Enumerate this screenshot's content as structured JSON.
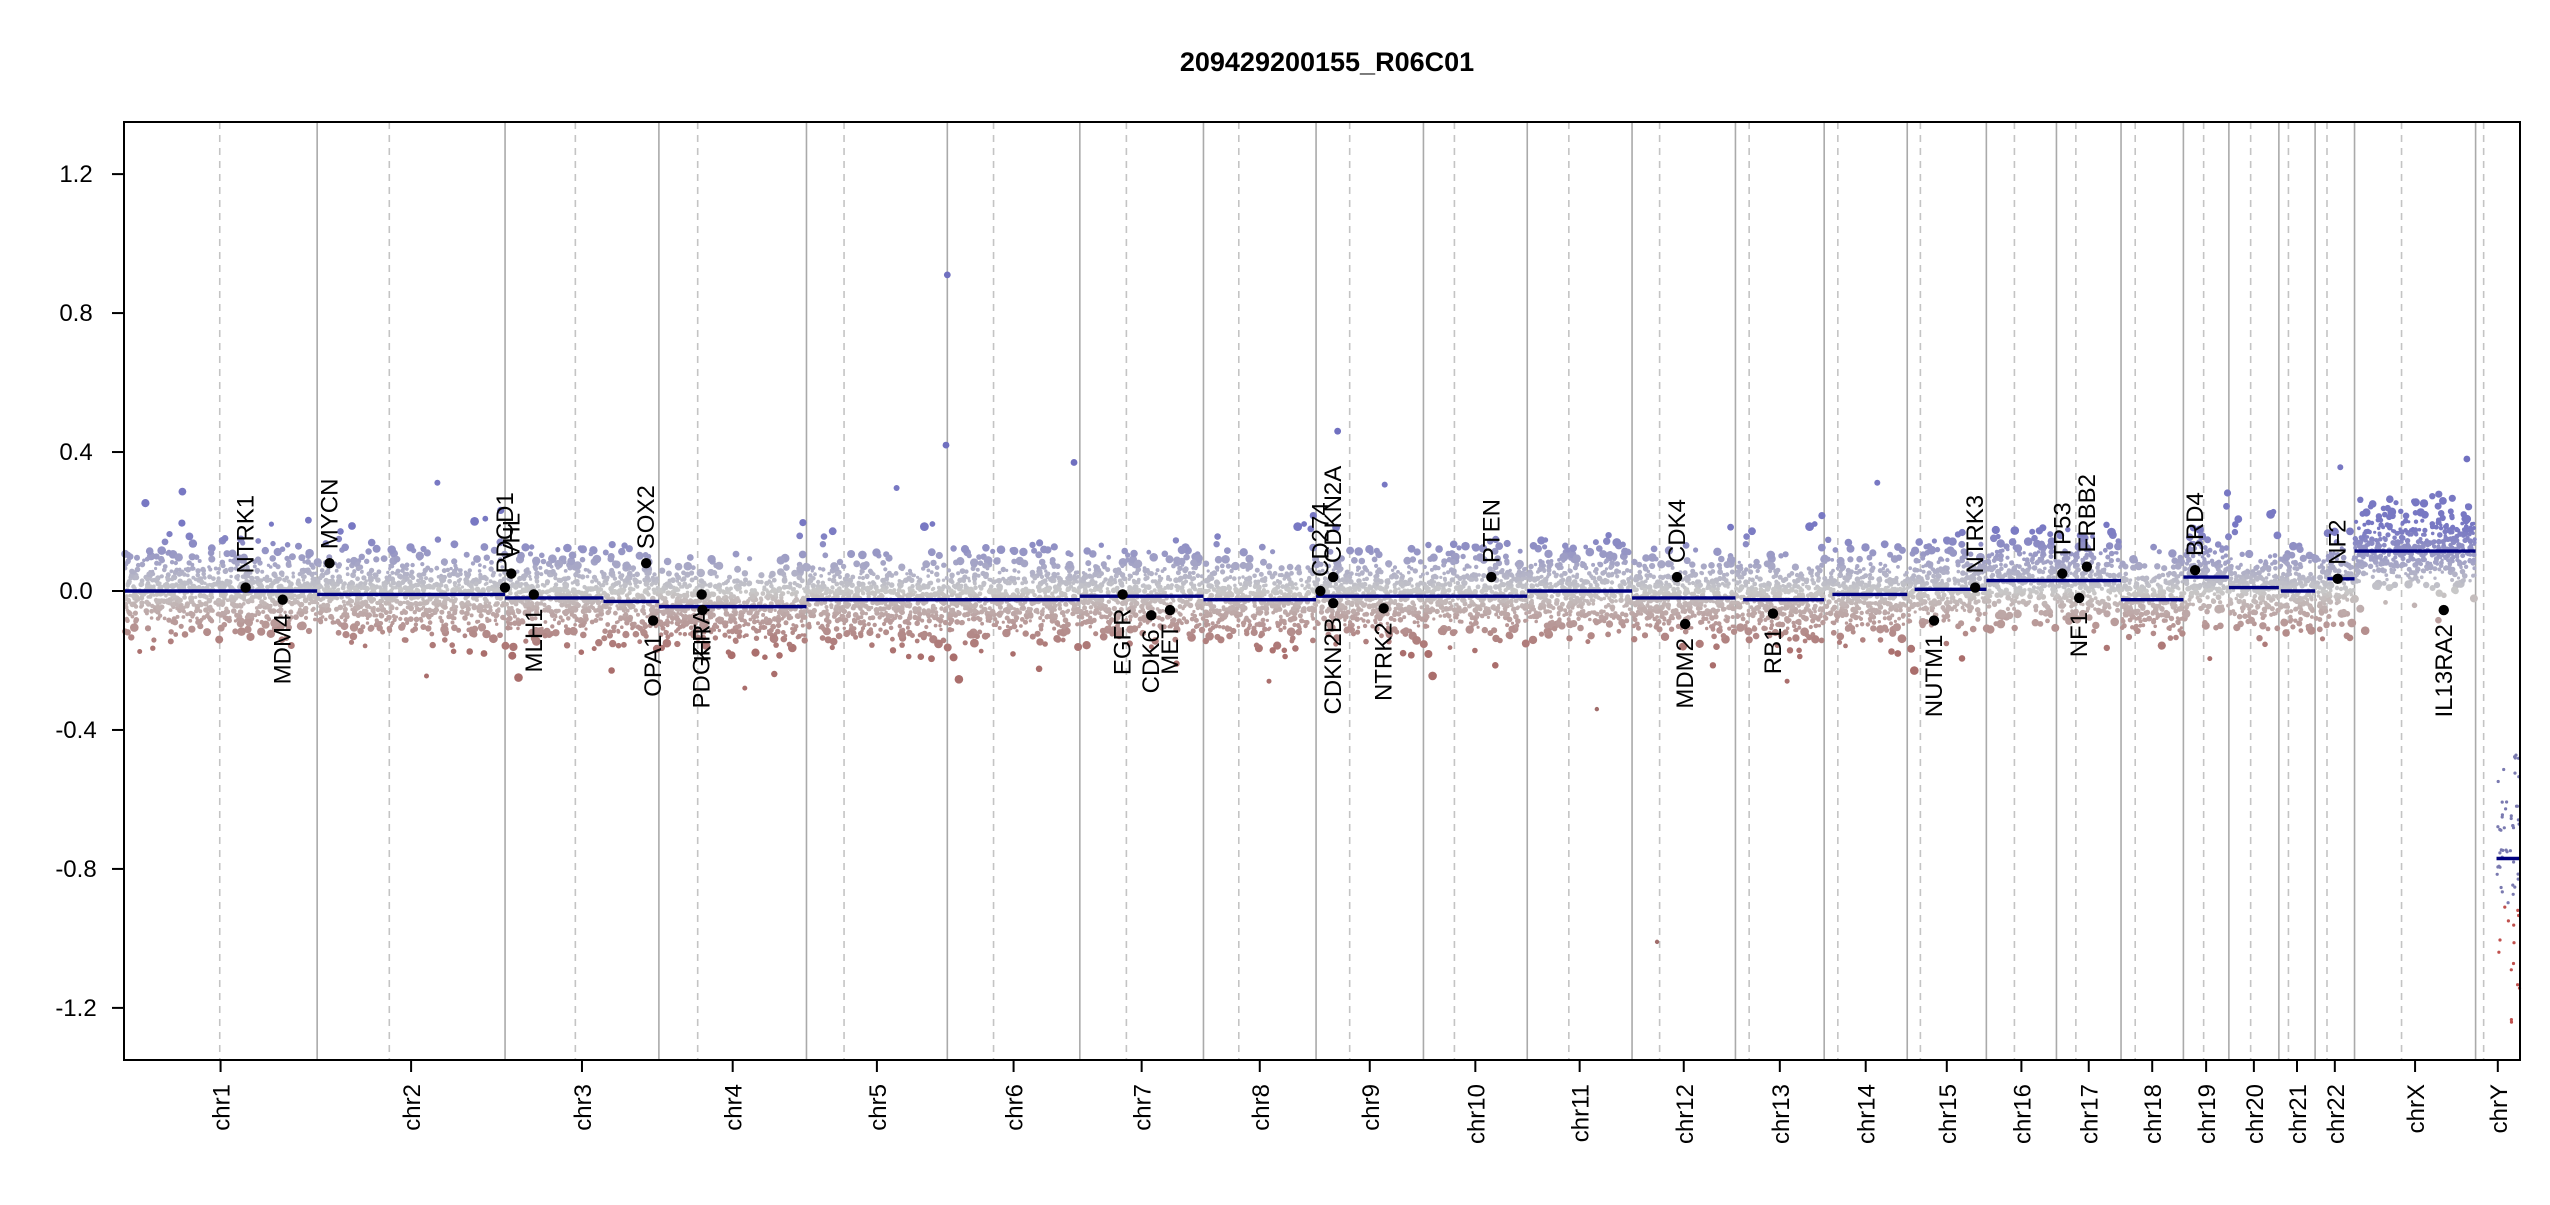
{
  "chart_data": {
    "type": "scatter",
    "title": "209429200155_R06C01",
    "ylim": [
      -1.35,
      1.35
    ],
    "y_ticks": [
      "1.2",
      "0.8",
      "0.4",
      "0.0",
      "-0.4",
      "-0.8",
      "-1.2"
    ],
    "y_tick_values": [
      1.2,
      0.8,
      0.4,
      0.0,
      -0.4,
      -0.8,
      -1.2
    ],
    "grid": false,
    "legend": "none",
    "colors": {
      "gain": "#7f7fc0",
      "loss": "#b07a78",
      "neutral": "#c8c8c8",
      "segment": "#00007f",
      "gene": "#000000",
      "chrom_line": "#aaaaaa"
    },
    "chromosomes": [
      {
        "name": "chr1",
        "start": 0.0,
        "end": 248.956
      },
      {
        "name": "chr2",
        "start": 248.956,
        "end": 491.149
      },
      {
        "name": "chr3",
        "start": 491.149,
        "end": 689.445
      },
      {
        "name": "chr4",
        "start": 689.445,
        "end": 879.66
      },
      {
        "name": "chr5",
        "start": 879.66,
        "end": 1061.198
      },
      {
        "name": "chr6",
        "start": 1061.198,
        "end": 1232.004
      },
      {
        "name": "chr7",
        "start": 1232.004,
        "end": 1391.35
      },
      {
        "name": "chr8",
        "start": 1391.35,
        "end": 1536.489
      },
      {
        "name": "chr9",
        "start": 1536.489,
        "end": 1674.884
      },
      {
        "name": "chr10",
        "start": 1674.884,
        "end": 1808.681
      },
      {
        "name": "chr11",
        "start": 1808.681,
        "end": 1943.768
      },
      {
        "name": "chr12",
        "start": 1943.768,
        "end": 2077.043
      },
      {
        "name": "chr13",
        "start": 2077.043,
        "end": 2191.407
      },
      {
        "name": "chr14",
        "start": 2191.407,
        "end": 2298.451
      },
      {
        "name": "chr15",
        "start": 2298.451,
        "end": 2400.442
      },
      {
        "name": "chr16",
        "start": 2400.442,
        "end": 2490.78
      },
      {
        "name": "chr17",
        "start": 2490.78,
        "end": 2574.038
      },
      {
        "name": "chr18",
        "start": 2574.038,
        "end": 2654.411
      },
      {
        "name": "chr19",
        "start": 2654.411,
        "end": 2713.028
      },
      {
        "name": "chr20",
        "start": 2713.028,
        "end": 2777.472
      },
      {
        "name": "chr21",
        "start": 2777.472,
        "end": 2824.182
      },
      {
        "name": "chr22",
        "start": 2824.182,
        "end": 2875.0
      },
      {
        "name": "chrX",
        "start": 2875.0,
        "end": 3031.04
      },
      {
        "name": "chrY",
        "start": 3031.04,
        "end": 3088.27
      }
    ],
    "centromeres": [
      123.4,
      341.96,
      581.75,
      739.45,
      928.1,
      1120.8,
      1292.0,
      1436.9,
      1579.8,
      1714.8,
      1862.3,
      1979.3,
      2094.7,
      2209.0,
      2315.4,
      2436.6,
      2515.8,
      2592.3,
      2680.5,
      2741.1,
      2789.8,
      2839.5,
      2935.6,
      3041.4
    ],
    "segments": [
      {
        "x0": 0.0,
        "x1": 248.956,
        "y": 0.0
      },
      {
        "x0": 248.956,
        "x1": 491.149,
        "y": -0.01
      },
      {
        "x0": 491.149,
        "x1": 618.0,
        "y": -0.02
      },
      {
        "x0": 618.0,
        "x1": 689.445,
        "y": -0.03
      },
      {
        "x0": 689.445,
        "x1": 879.66,
        "y": -0.045
      },
      {
        "x0": 879.66,
        "x1": 1061.198,
        "y": -0.025
      },
      {
        "x0": 1061.198,
        "x1": 1232.004,
        "y": -0.025
      },
      {
        "x0": 1232.004,
        "x1": 1391.35,
        "y": -0.015
      },
      {
        "x0": 1391.35,
        "x1": 1536.489,
        "y": -0.025
      },
      {
        "x0": 1536.489,
        "x1": 1674.884,
        "y": -0.015
      },
      {
        "x0": 1674.884,
        "x1": 1808.681,
        "y": -0.015
      },
      {
        "x0": 1808.681,
        "x1": 1943.768,
        "y": 0.0
      },
      {
        "x0": 1943.768,
        "x1": 2077.043,
        "y": -0.02
      },
      {
        "x0": 2087.0,
        "x1": 2191.407,
        "y": -0.025
      },
      {
        "x0": 2202.0,
        "x1": 2298.451,
        "y": -0.01
      },
      {
        "x0": 2308.0,
        "x1": 2400.442,
        "y": 0.005
      },
      {
        "x0": 2400.442,
        "x1": 2574.038,
        "y": 0.03
      },
      {
        "x0": 2574.038,
        "x1": 2654.411,
        "y": -0.025
      },
      {
        "x0": 2654.411,
        "x1": 2713.028,
        "y": 0.04
      },
      {
        "x0": 2713.028,
        "x1": 2777.472,
        "y": 0.01
      },
      {
        "x0": 2780.0,
        "x1": 2824.182,
        "y": 0.0
      },
      {
        "x0": 2840.0,
        "x1": 2875.0,
        "y": 0.035
      },
      {
        "x0": 2875.0,
        "x1": 3031.04,
        "y": 0.115
      },
      {
        "x0": 3058.0,
        "x1": 3088.27,
        "y": -0.77
      }
    ],
    "genes": [
      {
        "name": "NTRK1",
        "pos": 156.8,
        "y": 0.01,
        "side": "up"
      },
      {
        "name": "MDM4",
        "pos": 204.5,
        "y": -0.025,
        "side": "down"
      },
      {
        "name": "MYCN",
        "pos": 264.9,
        "y": 0.08,
        "side": "up"
      },
      {
        "name": "PDCD1",
        "pos": 491.0,
        "y": 0.01,
        "side": "up"
      },
      {
        "name": "VHL",
        "pos": 499.2,
        "y": 0.05,
        "side": "up"
      },
      {
        "name": "MLH1",
        "pos": 528.2,
        "y": -0.01,
        "side": "down"
      },
      {
        "name": "SOX2",
        "pos": 673.0,
        "y": 0.08,
        "side": "up"
      },
      {
        "name": "OPA1",
        "pos": 682.0,
        "y": -0.085,
        "side": "down"
      },
      {
        "name": "PDGFRA",
        "pos": 744.6,
        "y": -0.01,
        "side": "down"
      },
      {
        "name": "KIT",
        "pos": 745.6,
        "y": -0.055,
        "side": "down"
      },
      {
        "name": "EGFR",
        "pos": 1287.1,
        "y": -0.01,
        "side": "down"
      },
      {
        "name": "CDK6",
        "pos": 1324.0,
        "y": -0.07,
        "side": "down"
      },
      {
        "name": "MET",
        "pos": 1348.2,
        "y": -0.055,
        "side": "down"
      },
      {
        "name": "CD274",
        "pos": 1542.0,
        "y": 0.0,
        "side": "up"
      },
      {
        "name": "CDKN2A",
        "pos": 1558.5,
        "y": 0.04,
        "side": "up"
      },
      {
        "name": "CDKN2B",
        "pos": 1558.6,
        "y": -0.035,
        "side": "down"
      },
      {
        "name": "NTRK2",
        "pos": 1623.6,
        "y": -0.05,
        "side": "down"
      },
      {
        "name": "PTEN",
        "pos": 1762.4,
        "y": 0.04,
        "side": "up"
      },
      {
        "name": "CDK4",
        "pos": 2001.8,
        "y": 0.04,
        "side": "up"
      },
      {
        "name": "MDM2",
        "pos": 2012.2,
        "y": -0.095,
        "side": "down"
      },
      {
        "name": "RB1",
        "pos": 2125.4,
        "y": -0.065,
        "side": "down"
      },
      {
        "name": "NUTM1",
        "pos": 2333.0,
        "y": -0.085,
        "side": "down"
      },
      {
        "name": "NTRK3",
        "pos": 2386.0,
        "y": 0.01,
        "side": "up"
      },
      {
        "name": "TP53",
        "pos": 2498.3,
        "y": 0.05,
        "side": "up"
      },
      {
        "name": "NF1",
        "pos": 2520.1,
        "y": -0.02,
        "side": "down"
      },
      {
        "name": "ERBB2",
        "pos": 2530.0,
        "y": 0.07,
        "side": "up"
      },
      {
        "name": "BRD4",
        "pos": 2669.5,
        "y": 0.06,
        "side": "up"
      },
      {
        "name": "NF2",
        "pos": 2853.3,
        "y": 0.035,
        "side": "up"
      },
      {
        "name": "IL13RA2",
        "pos": 2990.0,
        "y": -0.055,
        "side": "down"
      }
    ],
    "outliers": [
      {
        "x": 1061.2,
        "y": 0.91
      },
      {
        "x": 1059.5,
        "y": 0.42
      },
      {
        "x": 1224.5,
        "y": 0.37
      },
      {
        "x": 1564.3,
        "y": 0.46
      },
      {
        "x": 1898.4,
        "y": -0.34
      },
      {
        "x": 1976.0,
        "y": -1.01
      },
      {
        "x": 3019.8,
        "y": 0.38
      }
    ]
  }
}
